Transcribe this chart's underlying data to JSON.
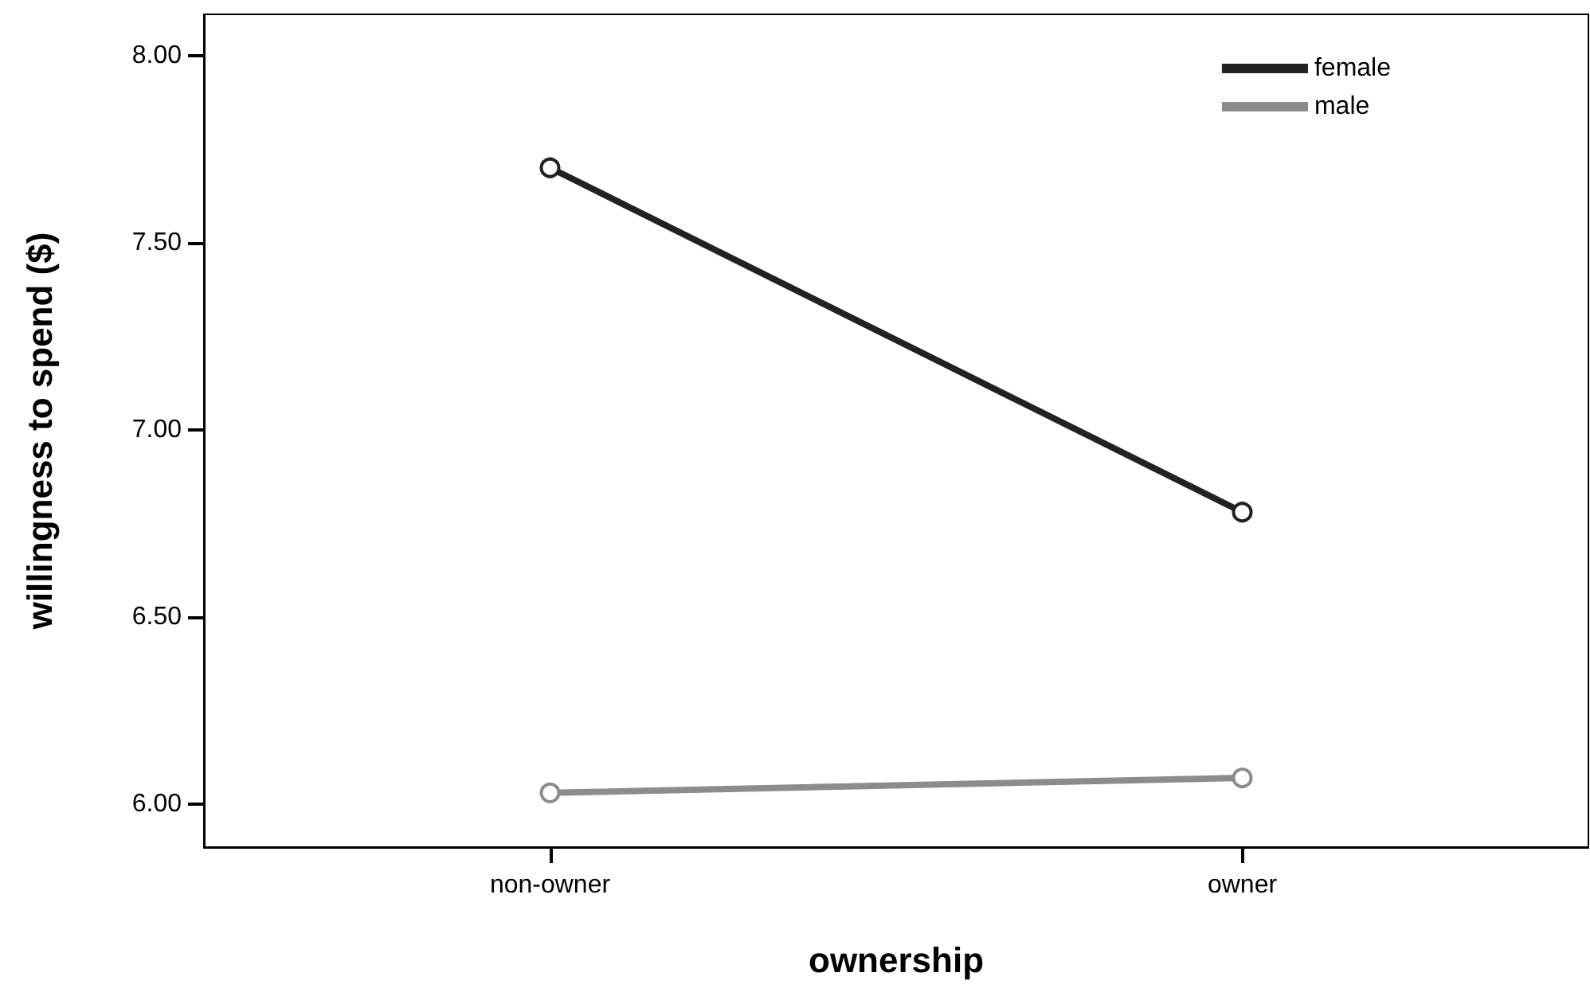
{
  "chart_data": {
    "type": "line",
    "xlabel": "ownership",
    "ylabel": "willingness to spend ($)",
    "categories": [
      "non-owner",
      "owner"
    ],
    "series": [
      {
        "name": "female",
        "color": "#222222",
        "values": [
          7.7,
          6.78
        ]
      },
      {
        "name": "male",
        "color": "#8c8c8c",
        "values": [
          6.03,
          6.07
        ]
      }
    ],
    "ylim": [
      5.885,
      8.11
    ],
    "yticks": [
      {
        "value": 6,
        "label": "6.00"
      },
      {
        "value": 6.5,
        "label": "6.50"
      },
      {
        "value": 7,
        "label": "7.00"
      },
      {
        "value": 7.5,
        "label": "7.50"
      },
      {
        "value": 8,
        "label": "8.00"
      }
    ],
    "grid": false,
    "legend": "top right",
    "marker": "circle",
    "line_style": "solid"
  }
}
